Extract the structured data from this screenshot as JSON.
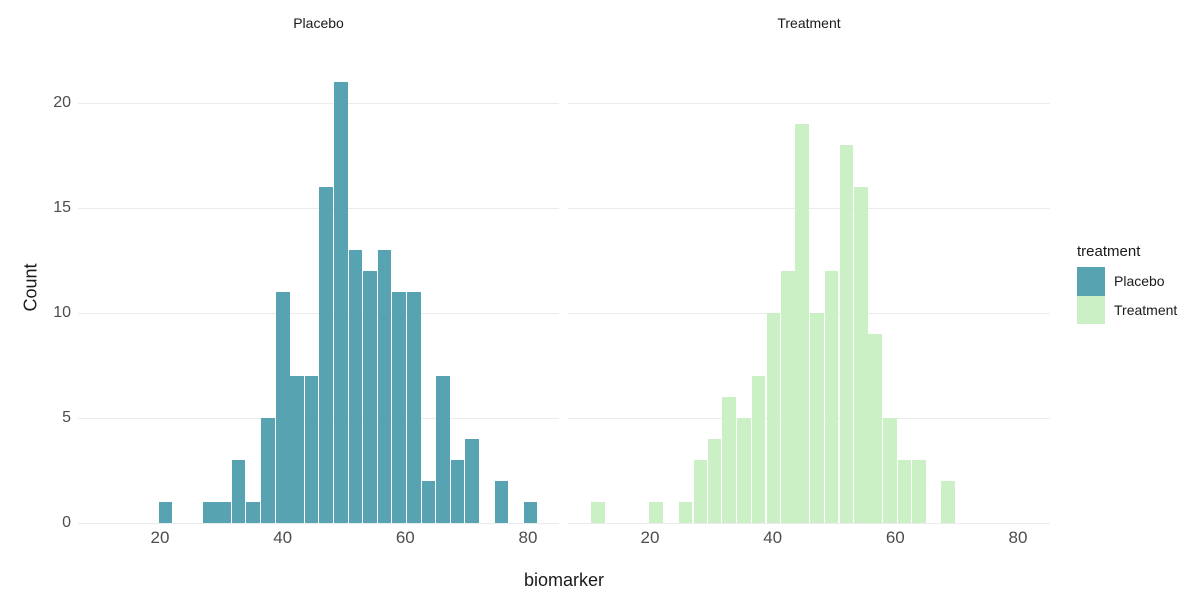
{
  "chart_data": {
    "type": "histogram",
    "title": "",
    "xlabel": "biomarker",
    "ylabel": "Count",
    "legend_title": "treatment",
    "x_ticks": [
      20,
      40,
      60,
      80
    ],
    "y_ticks": [
      0,
      5,
      10,
      15,
      20
    ],
    "ylim": [
      0,
      21
    ],
    "bin_width": 2.4,
    "grid": "horizontal-only",
    "legend_position": "right",
    "facets": [
      {
        "label": "Placebo",
        "color": "#57a3b2",
        "total_n": 153,
        "bars": [
          {
            "x": 19.8,
            "n": 1
          },
          {
            "x": 27.0,
            "n": 1
          },
          {
            "x": 29.3,
            "n": 1
          },
          {
            "x": 31.7,
            "n": 3
          },
          {
            "x": 34.1,
            "n": 1
          },
          {
            "x": 36.5,
            "n": 5
          },
          {
            "x": 38.9,
            "n": 11
          },
          {
            "x": 41.2,
            "n": 7
          },
          {
            "x": 43.6,
            "n": 7
          },
          {
            "x": 46.0,
            "n": 16
          },
          {
            "x": 48.4,
            "n": 21
          },
          {
            "x": 50.8,
            "n": 13
          },
          {
            "x": 53.1,
            "n": 12
          },
          {
            "x": 55.5,
            "n": 13
          },
          {
            "x": 57.9,
            "n": 11
          },
          {
            "x": 60.3,
            "n": 11
          },
          {
            "x": 62.7,
            "n": 2
          },
          {
            "x": 65.0,
            "n": 7
          },
          {
            "x": 67.4,
            "n": 3
          },
          {
            "x": 69.8,
            "n": 4
          },
          {
            "x": 74.6,
            "n": 2
          },
          {
            "x": 79.3,
            "n": 1
          }
        ]
      },
      {
        "label": "Treatment",
        "color": "#ccf0c6",
        "total_n": 147,
        "bars": [
          {
            "x": 10.4,
            "n": 1
          },
          {
            "x": 19.9,
            "n": 1
          },
          {
            "x": 24.7,
            "n": 1
          },
          {
            "x": 27.1,
            "n": 3
          },
          {
            "x": 29.4,
            "n": 4
          },
          {
            "x": 31.8,
            "n": 6
          },
          {
            "x": 34.2,
            "n": 5
          },
          {
            "x": 36.6,
            "n": 7
          },
          {
            "x": 39.0,
            "n": 10
          },
          {
            "x": 41.4,
            "n": 12
          },
          {
            "x": 43.7,
            "n": 19
          },
          {
            "x": 46.1,
            "n": 10
          },
          {
            "x": 48.5,
            "n": 12
          },
          {
            "x": 50.9,
            "n": 18
          },
          {
            "x": 53.3,
            "n": 16
          },
          {
            "x": 55.6,
            "n": 9
          },
          {
            "x": 58.0,
            "n": 5
          },
          {
            "x": 60.4,
            "n": 3
          },
          {
            "x": 62.8,
            "n": 3
          },
          {
            "x": 67.5,
            "n": 2
          }
        ]
      }
    ],
    "legend_items": [
      {
        "label": "Placebo",
        "color": "#57a3b2"
      },
      {
        "label": "Treatment",
        "color": "#ccf0c6"
      }
    ]
  }
}
